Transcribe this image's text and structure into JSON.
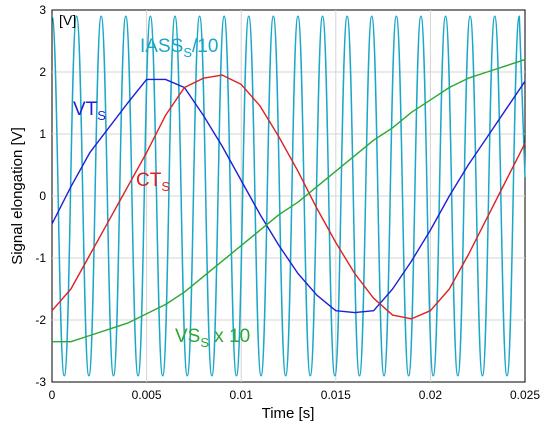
{
  "chart_data": {
    "type": "line",
    "xlabel": "Time [s]",
    "ylabel": "Signal elongation [V]",
    "unit_label": "[V]",
    "xlim": [
      0,
      0.025
    ],
    "ylim": [
      -3,
      3
    ],
    "x_ticks": [
      0,
      0.005,
      0.01,
      0.015,
      0.02,
      0.025
    ],
    "x_tick_labels": [
      "0",
      "0.005",
      "0.01",
      "0.015",
      "0.02",
      "0.025"
    ],
    "y_ticks": [
      -3,
      -2,
      -1,
      0,
      1,
      2,
      3
    ],
    "y_tick_labels": [
      "-3",
      "-2",
      "-1",
      "0",
      "1",
      "2",
      "3"
    ],
    "grid": true,
    "series": [
      {
        "label_main": "IASS",
        "label_sub": "S",
        "label_suffix": "/10",
        "color": "#1aa7c8",
        "x": [
          0,
          0.00065,
          0.0013,
          0.00195,
          0.0026,
          0.00325,
          0.0039,
          0.00455,
          0.0052,
          0.00585,
          0.0065,
          0.00715,
          0.0078,
          0.00845,
          0.0091,
          0.00975,
          0.0104,
          0.01105,
          0.0117,
          0.01235,
          0.013,
          0.01365,
          0.0143,
          0.01495,
          0.0156,
          0.01625,
          0.0169,
          0.01755,
          0.0182,
          0.01885,
          0.0195,
          0.02015,
          0.0208,
          0.02145,
          0.0221,
          0.02275,
          0.0234,
          0.02405,
          0.0247
        ],
        "y": [
          2.9,
          -2.9,
          2.9,
          -2.9,
          2.9,
          -2.9,
          2.9,
          -2.9,
          2.9,
          -2.9,
          2.9,
          -2.9,
          2.9,
          -2.9,
          2.9,
          -2.9,
          2.9,
          -2.9,
          2.9,
          -2.9,
          2.9,
          -2.9,
          2.9,
          -2.9,
          2.9,
          -2.9,
          2.9,
          -2.9,
          2.9,
          -2.9,
          2.9,
          -2.9,
          2.9,
          -2.9,
          2.9,
          -2.9,
          2.9,
          -2.9,
          2.9
        ]
      },
      {
        "label_main": "VT",
        "label_sub": "S",
        "label_suffix": "",
        "color": "#1f1fd6",
        "x": [
          0,
          0.001,
          0.002,
          0.003,
          0.004,
          0.005,
          0.006,
          0.007,
          0.008,
          0.009,
          0.01,
          0.011,
          0.012,
          0.013,
          0.014,
          0.015,
          0.016,
          0.017,
          0.018,
          0.019,
          0.02,
          0.021,
          0.022,
          0.023,
          0.024,
          0.025
        ],
        "y": [
          -0.45,
          0.15,
          0.7,
          1.1,
          1.5,
          1.88,
          1.88,
          1.75,
          1.3,
          0.8,
          0.25,
          -0.3,
          -0.8,
          -1.25,
          -1.6,
          -1.85,
          -1.88,
          -1.85,
          -1.5,
          -1.05,
          -0.55,
          0.0,
          0.5,
          0.95,
          1.4,
          1.85
        ]
      },
      {
        "label_main": "CT",
        "label_sub": "S",
        "label_suffix": "",
        "color": "#e02020",
        "x": [
          0,
          0.001,
          0.002,
          0.003,
          0.004,
          0.005,
          0.006,
          0.007,
          0.008,
          0.009,
          0.01,
          0.011,
          0.012,
          0.013,
          0.014,
          0.015,
          0.016,
          0.017,
          0.018,
          0.019,
          0.02,
          0.021,
          0.022,
          0.023,
          0.024,
          0.025
        ],
        "y": [
          -1.85,
          -1.5,
          -0.95,
          -0.4,
          0.15,
          0.7,
          1.3,
          1.75,
          1.9,
          1.95,
          1.8,
          1.45,
          0.95,
          0.4,
          -0.2,
          -0.75,
          -1.25,
          -1.65,
          -1.92,
          -1.98,
          -1.85,
          -1.5,
          -0.95,
          -0.35,
          0.25,
          0.85
        ]
      },
      {
        "label_main": "VS",
        "label_sub": "S",
        "label_suffix": " x 10",
        "color": "#2aa832",
        "x": [
          0,
          0.001,
          0.002,
          0.003,
          0.004,
          0.005,
          0.006,
          0.007,
          0.008,
          0.009,
          0.01,
          0.011,
          0.012,
          0.013,
          0.014,
          0.015,
          0.016,
          0.017,
          0.018,
          0.019,
          0.02,
          0.021,
          0.022,
          0.023,
          0.024,
          0.025
        ],
        "y": [
          -2.35,
          -2.35,
          -2.25,
          -2.15,
          -2.05,
          -1.9,
          -1.75,
          -1.55,
          -1.3,
          -1.05,
          -0.8,
          -0.55,
          -0.3,
          -0.1,
          0.15,
          0.4,
          0.65,
          0.9,
          1.1,
          1.35,
          1.55,
          1.75,
          1.9,
          2.0,
          2.1,
          2.2
        ]
      }
    ]
  }
}
